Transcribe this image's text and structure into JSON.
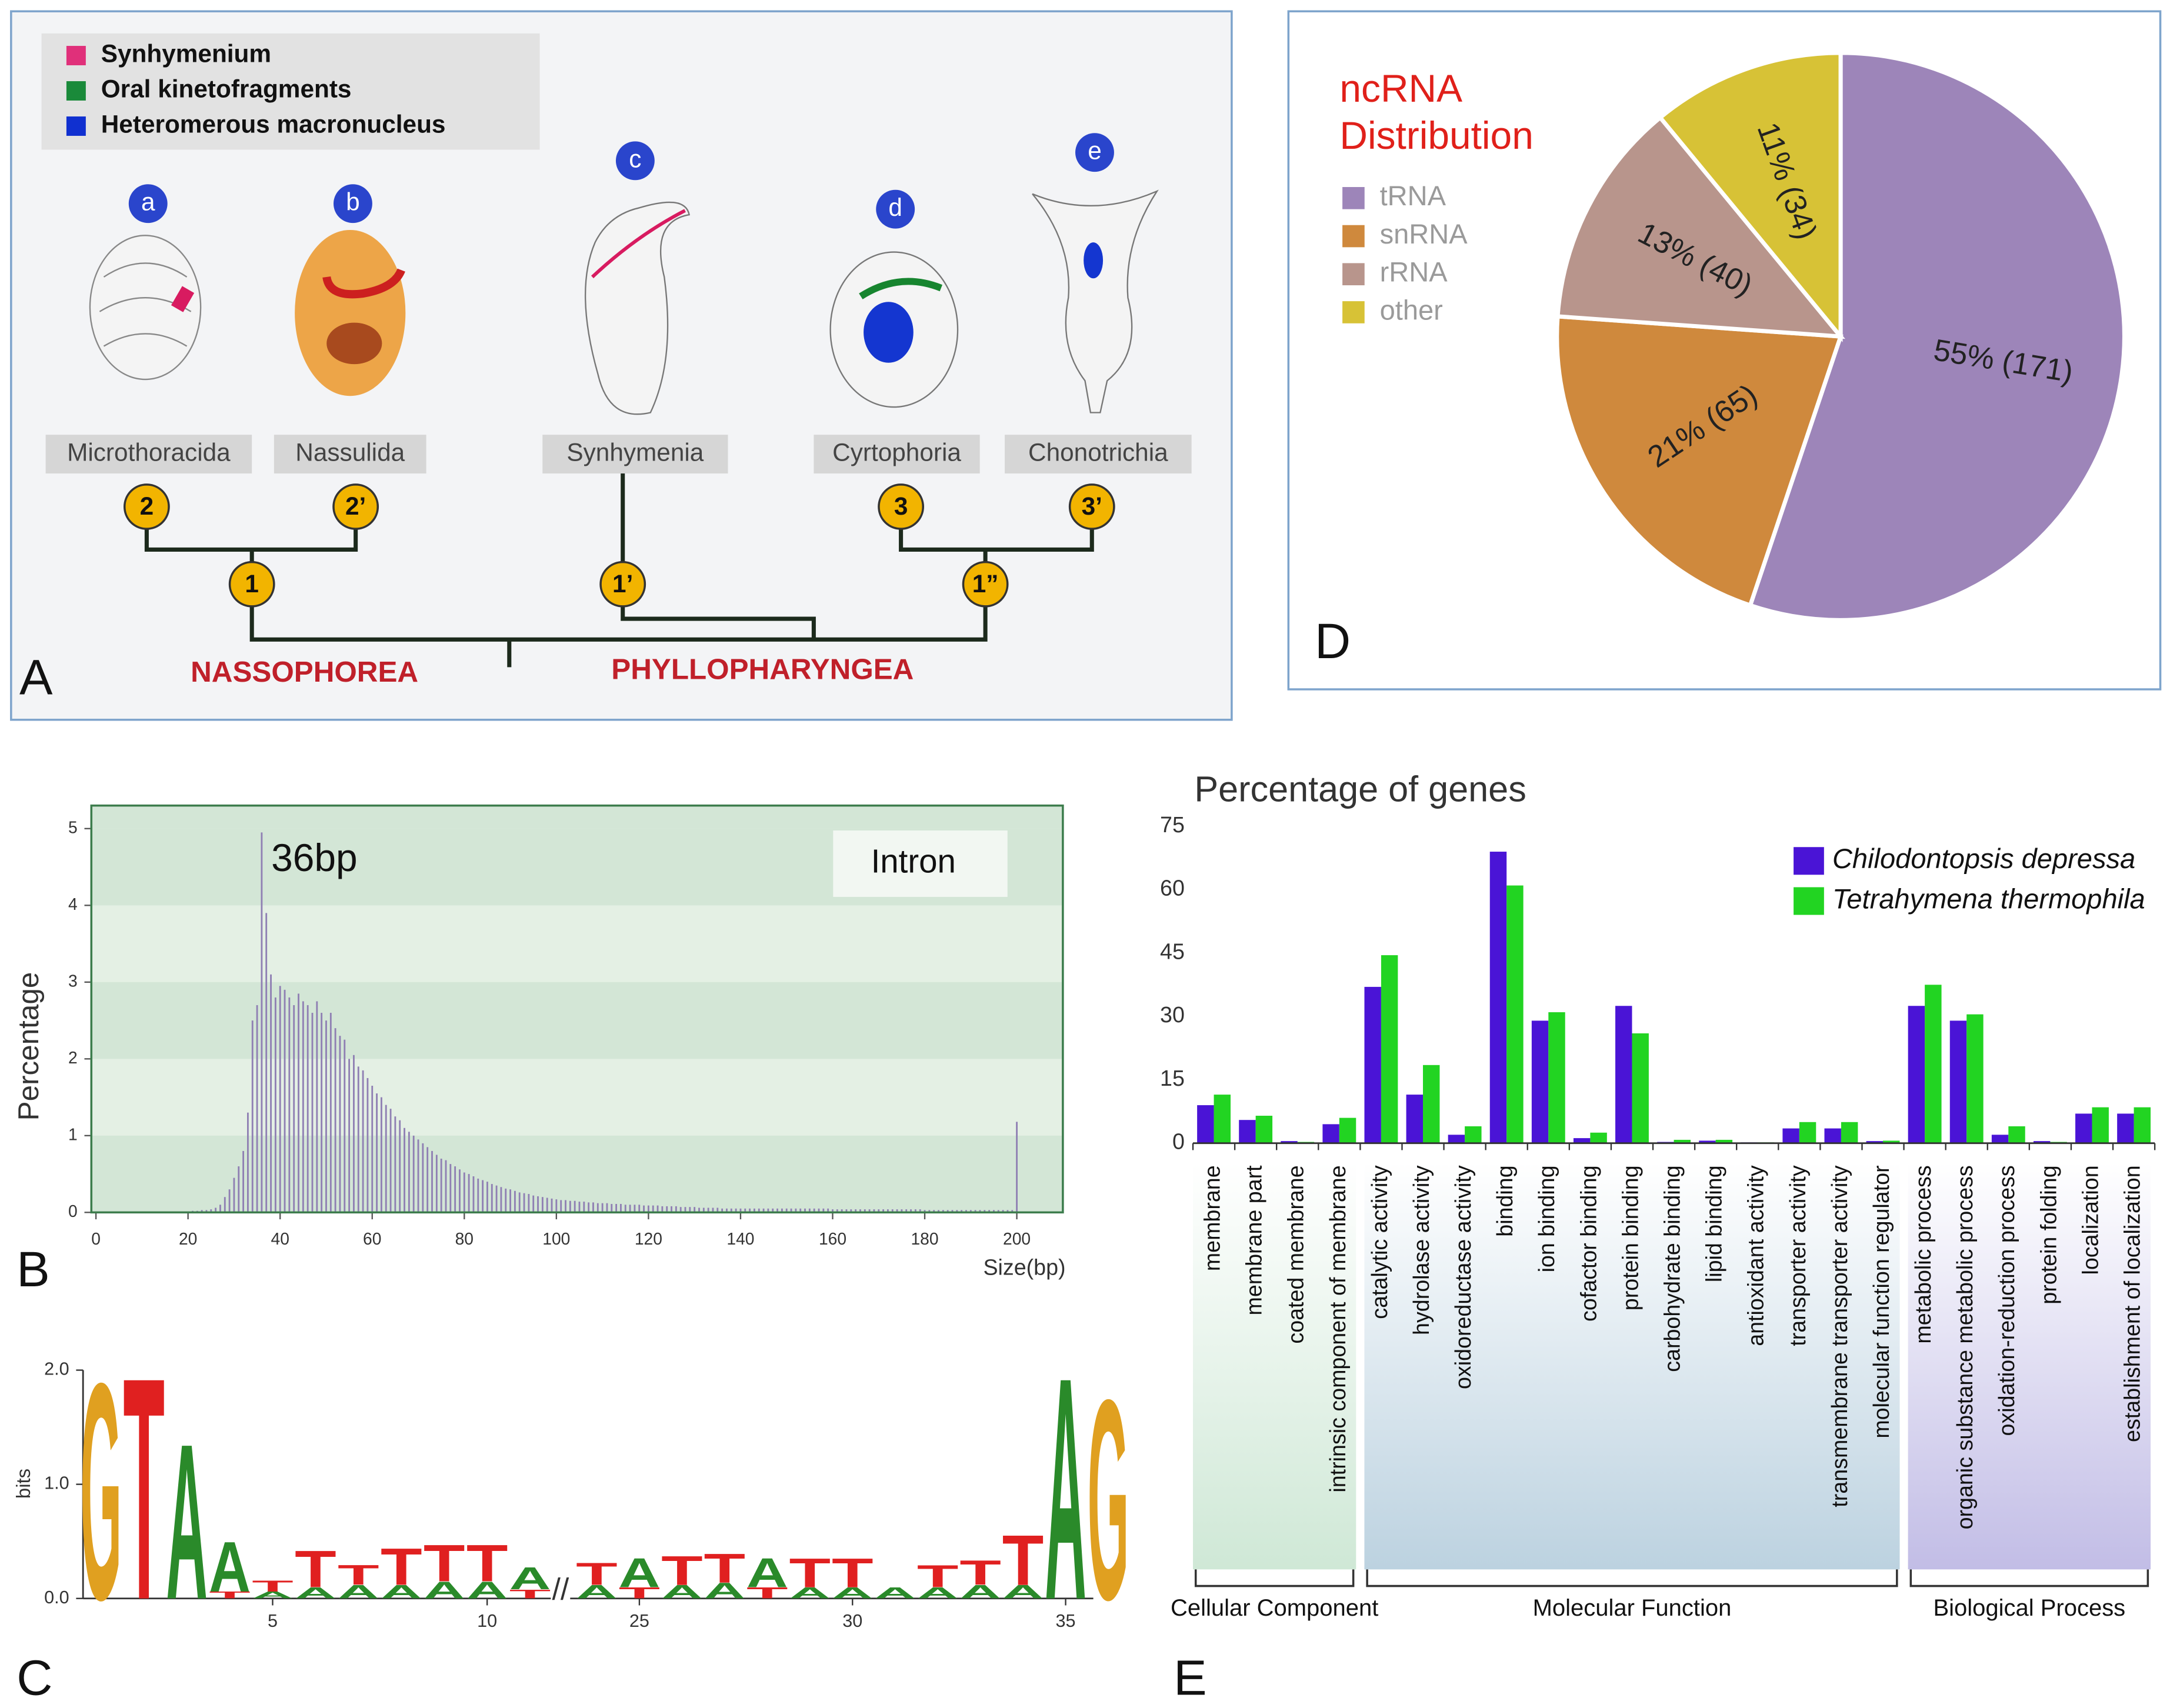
{
  "panel_labels": [
    "A",
    "B",
    "C",
    "D",
    "E"
  ],
  "diagram": {
    "legend": [
      {
        "label": "Synhymenium",
        "color": "#e0307a"
      },
      {
        "label": "Oral kinetofragments",
        "color": "#1a8a3a"
      },
      {
        "label": "Heteromerous macronucleus",
        "color": "#1030d0"
      }
    ],
    "taxa": [
      {
        "letter": "a",
        "name": "Microthoracida"
      },
      {
        "letter": "b",
        "name": "Nassulida"
      },
      {
        "letter": "c",
        "name": "Synhymenia"
      },
      {
        "letter": "d",
        "name": "Cyrtophoria"
      },
      {
        "letter": "e",
        "name": "Chonotrichia"
      }
    ],
    "nodes": [
      "2",
      "2’",
      "3",
      "3’",
      "1",
      "1’",
      "1”"
    ],
    "classes": [
      "NASSOPHOREA",
      "PHYLLOPHARYNGEA"
    ]
  },
  "chart_data": [
    {
      "type": "pie",
      "title_lines": [
        "ncRNA",
        "Distribution"
      ],
      "categories": [
        "tRNA",
        "snRNA",
        "rRNA",
        "other"
      ],
      "values": [
        171,
        65,
        40,
        34
      ],
      "value_labels": [
        "55% (171)",
        "21% (65)",
        "13% (40)",
        "11% (34)"
      ],
      "colors": [
        "#9d85b9",
        "#cf893d",
        "#b8958c",
        "#d7c236"
      ]
    },
    {
      "type": "bar",
      "annotation": "36bp",
      "legend_label": "Intron",
      "x_label": "Size(bp)",
      "y_label": "Percentage",
      "color": "#8f7fb3",
      "xlim": [
        -1,
        210
      ],
      "ylim": [
        0,
        5.3
      ],
      "xticks": [
        0,
        20,
        40,
        60,
        80,
        100,
        120,
        140,
        160,
        180,
        200
      ],
      "yticks": [
        0,
        1,
        2,
        3,
        4,
        5
      ],
      "x": [
        20,
        21,
        22,
        23,
        24,
        25,
        26,
        27,
        28,
        29,
        30,
        31,
        32,
        33,
        34,
        35,
        36,
        37,
        38,
        39,
        40,
        41,
        42,
        43,
        44,
        45,
        46,
        47,
        48,
        49,
        50,
        51,
        52,
        53,
        54,
        55,
        56,
        57,
        58,
        59,
        60,
        61,
        62,
        63,
        64,
        65,
        66,
        67,
        68,
        69,
        70,
        71,
        72,
        73,
        74,
        75,
        76,
        77,
        78,
        79,
        80,
        81,
        82,
        83,
        84,
        85,
        86,
        87,
        88,
        89,
        90,
        91,
        92,
        93,
        94,
        95,
        96,
        97,
        98,
        99,
        100,
        101,
        102,
        103,
        104,
        105,
        106,
        107,
        108,
        109,
        110,
        111,
        112,
        113,
        114,
        115,
        116,
        117,
        118,
        119,
        120,
        121,
        122,
        123,
        124,
        125,
        126,
        127,
        128,
        129,
        130,
        131,
        132,
        133,
        134,
        135,
        136,
        137,
        138,
        139,
        140,
        141,
        142,
        143,
        144,
        145,
        146,
        147,
        148,
        149,
        150,
        151,
        152,
        153,
        154,
        155,
        156,
        157,
        158,
        159,
        160,
        161,
        162,
        163,
        164,
        165,
        166,
        167,
        168,
        169,
        170,
        171,
        172,
        173,
        174,
        175,
        176,
        177,
        178,
        179,
        180,
        181,
        182,
        183,
        184,
        185,
        186,
        187,
        188,
        189,
        190,
        191,
        192,
        193,
        194,
        195,
        196,
        197,
        198,
        199,
        200
      ],
      "values": [
        0.01,
        0.02,
        0.02,
        0.03,
        0.03,
        0.04,
        0.06,
        0.1,
        0.2,
        0.3,
        0.45,
        0.6,
        0.8,
        1.3,
        2.5,
        2.7,
        4.95,
        3.9,
        3.1,
        2.8,
        2.95,
        2.9,
        2.8,
        2.7,
        2.85,
        2.75,
        2.7,
        2.6,
        2.75,
        2.6,
        2.5,
        2.6,
        2.4,
        2.3,
        2.25,
        2.0,
        2.05,
        1.9,
        1.85,
        1.75,
        1.65,
        1.55,
        1.5,
        1.4,
        1.35,
        1.25,
        1.2,
        1.1,
        1.05,
        1.0,
        0.95,
        0.9,
        0.85,
        0.8,
        0.75,
        0.7,
        0.68,
        0.63,
        0.6,
        0.56,
        0.52,
        0.5,
        0.47,
        0.44,
        0.42,
        0.4,
        0.37,
        0.35,
        0.33,
        0.31,
        0.3,
        0.28,
        0.26,
        0.25,
        0.24,
        0.22,
        0.21,
        0.2,
        0.19,
        0.18,
        0.17,
        0.16,
        0.16,
        0.15,
        0.15,
        0.14,
        0.14,
        0.13,
        0.13,
        0.12,
        0.12,
        0.12,
        0.11,
        0.11,
        0.11,
        0.1,
        0.1,
        0.1,
        0.1,
        0.09,
        0.09,
        0.09,
        0.09,
        0.08,
        0.08,
        0.08,
        0.08,
        0.07,
        0.07,
        0.07,
        0.07,
        0.06,
        0.06,
        0.06,
        0.06,
        0.06,
        0.05,
        0.05,
        0.05,
        0.05,
        0.05,
        0.05,
        0.05,
        0.05,
        0.05,
        0.05,
        0.05,
        0.05,
        0.05,
        0.05,
        0.05,
        0.05,
        0.05,
        0.05,
        0.05,
        0.05,
        0.05,
        0.05,
        0.05,
        0.05,
        0.04,
        0.04,
        0.04,
        0.04,
        0.04,
        0.04,
        0.04,
        0.04,
        0.04,
        0.04,
        0.04,
        0.04,
        0.04,
        0.04,
        0.04,
        0.04,
        0.04,
        0.04,
        0.04,
        0.04,
        0.03,
        0.03,
        0.03,
        0.03,
        0.03,
        0.03,
        0.03,
        0.03,
        0.03,
        0.03,
        0.03,
        0.03,
        0.03,
        0.03,
        0.03,
        0.03,
        0.03,
        0.03,
        0.03,
        0.03,
        1.18
      ]
    },
    {
      "type": "logo",
      "y_label": "bits",
      "ylim": [
        0,
        2
      ],
      "yticks": [
        {
          "value": 0,
          "label": "0.0"
        },
        {
          "value": 1,
          "label": "1.0"
        },
        {
          "value": 2,
          "label": "2.0"
        }
      ],
      "xticks": [
        5,
        10,
        25,
        30,
        35
      ],
      "letter_colors": {
        "A": "#2a8a2a",
        "C": "#2040c0",
        "G": "#e0a020",
        "T": "#e02020"
      },
      "positions": [
        {
          "position": 1,
          "letters": [
            {
              "letter": "G",
              "bits": 1.95
            }
          ]
        },
        {
          "position": 2,
          "letters": [
            {
              "letter": "T",
              "bits": 2.0
            }
          ]
        },
        {
          "position": 3,
          "letters": [
            {
              "letter": "A",
              "bits": 1.4
            }
          ]
        },
        {
          "position": 4,
          "letters": [
            {
              "letter": "T",
              "bits": 0.06
            },
            {
              "letter": "A",
              "bits": 0.45
            }
          ]
        },
        {
          "position": 5,
          "letters": [
            {
              "letter": "A",
              "bits": 0.06
            },
            {
              "letter": "T",
              "bits": 0.1
            }
          ]
        },
        {
          "position": 6,
          "letters": [
            {
              "letter": "A",
              "bits": 0.1
            },
            {
              "letter": "T",
              "bits": 0.33
            }
          ]
        },
        {
          "position": 7,
          "letters": [
            {
              "letter": "A",
              "bits": 0.12
            },
            {
              "letter": "T",
              "bits": 0.18
            }
          ]
        },
        {
          "position": 8,
          "letters": [
            {
              "letter": "A",
              "bits": 0.12
            },
            {
              "letter": "T",
              "bits": 0.33
            }
          ]
        },
        {
          "position": 9,
          "letters": [
            {
              "letter": "A",
              "bits": 0.15
            },
            {
              "letter": "T",
              "bits": 0.33
            }
          ]
        },
        {
          "position": 10,
          "letters": [
            {
              "letter": "A",
              "bits": 0.15
            },
            {
              "letter": "T",
              "bits": 0.33
            }
          ]
        },
        {
          "position": 11,
          "letters": [
            {
              "letter": "T",
              "bits": 0.08
            },
            {
              "letter": "A",
              "bits": 0.2
            }
          ]
        },
        {
          "position": 24,
          "letters": [
            {
              "letter": "A",
              "bits": 0.12
            },
            {
              "letter": "T",
              "bits": 0.2
            }
          ]
        },
        {
          "position": 25,
          "letters": [
            {
              "letter": "T",
              "bits": 0.1
            },
            {
              "letter": "A",
              "bits": 0.26
            }
          ]
        },
        {
          "position": 26,
          "letters": [
            {
              "letter": "A",
              "bits": 0.12
            },
            {
              "letter": "T",
              "bits": 0.26
            }
          ]
        },
        {
          "position": 27,
          "letters": [
            {
              "letter": "A",
              "bits": 0.14
            },
            {
              "letter": "T",
              "bits": 0.26
            }
          ]
        },
        {
          "position": 28,
          "letters": [
            {
              "letter": "T",
              "bits": 0.1
            },
            {
              "letter": "A",
              "bits": 0.26
            }
          ]
        },
        {
          "position": 29,
          "letters": [
            {
              "letter": "A",
              "bits": 0.1
            },
            {
              "letter": "T",
              "bits": 0.26
            }
          ]
        },
        {
          "position": 30,
          "letters": [
            {
              "letter": "A",
              "bits": 0.1
            },
            {
              "letter": "T",
              "bits": 0.26
            }
          ]
        },
        {
          "position": 31,
          "letters": [
            {
              "letter": "A",
              "bits": 0.1
            }
          ]
        },
        {
          "position": 32,
          "letters": [
            {
              "letter": "A",
              "bits": 0.1
            },
            {
              "letter": "T",
              "bits": 0.2
            }
          ]
        },
        {
          "position": 33,
          "letters": [
            {
              "letter": "A",
              "bits": 0.12
            },
            {
              "letter": "T",
              "bits": 0.22
            }
          ]
        },
        {
          "position": 34,
          "letters": [
            {
              "letter": "A",
              "bits": 0.12
            },
            {
              "letter": "T",
              "bits": 0.45
            }
          ]
        },
        {
          "position": 35,
          "letters": [
            {
              "letter": "A",
              "bits": 2.0
            }
          ]
        },
        {
          "position": 36,
          "letters": [
            {
              "letter": "G",
              "bits": 1.8
            }
          ]
        }
      ]
    },
    {
      "type": "bar",
      "title": "Percentage of genes",
      "ylim": [
        0,
        75
      ],
      "yticks": [
        0,
        15,
        30,
        45,
        60,
        75
      ],
      "groups": [
        {
          "name": "Cellular Component",
          "categories": [
            "membrane",
            "membrane part",
            "coated membrane",
            "intrinsic component of membrane"
          ]
        },
        {
          "name": "Molecular Function",
          "categories": [
            "catalytic activity",
            "hydrolase activity",
            "oxidoreductase activity",
            "binding",
            "ion binding",
            "cofactor binding",
            "protein binding",
            "carbohydrate binding",
            "lipid binding",
            "antioxidant activity",
            "transporter activity",
            "transmembrane transporter activity",
            "molecular function regulator"
          ]
        },
        {
          "name": "Biological Process",
          "categories": [
            "metabolic process",
            "organic substance metabolic process",
            "oxidation-reduction process",
            "protein folding",
            "localization",
            "establishment of localization"
          ]
        }
      ],
      "series": [
        {
          "name": "Chilodontopsis depressa",
          "color": "#4a14d6",
          "values": [
            9,
            5.5,
            0.5,
            4.5,
            37,
            11.5,
            2,
            69,
            29,
            1.2,
            32.5,
            0.3,
            0.6,
            0.2,
            3.5,
            3.5,
            0.5,
            32.5,
            29,
            2,
            0.5,
            7,
            7
          ]
        },
        {
          "name": "Tetrahymena thermophila",
          "color": "#22d422",
          "values": [
            11.5,
            6.5,
            0.3,
            6,
            44.5,
            18.5,
            4,
            61,
            31,
            2.5,
            26,
            0.8,
            0.8,
            0.2,
            5,
            5,
            0.6,
            37.5,
            30.5,
            4,
            0.3,
            8.5,
            8.5
          ]
        }
      ]
    }
  ]
}
